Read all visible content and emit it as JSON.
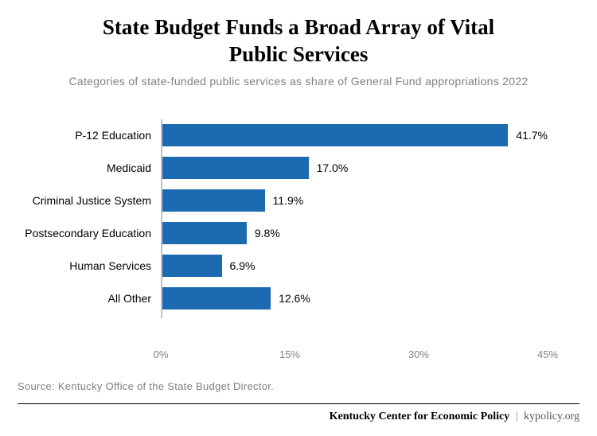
{
  "title_line1": "State Budget Funds a Broad Array of Vital",
  "title_line2": "Public Services",
  "subtitle": "Categories of state-funded public services as share of General Fund appropriations 2022",
  "chart": {
    "type": "bar-horizontal",
    "bar_color": "#1c6bb0",
    "axis_color": "#c0c0c0",
    "label_color": "#000000",
    "tick_color": "#808080",
    "label_fontsize": 14,
    "value_fontsize": 14,
    "tick_fontsize": 13,
    "xmax": 45,
    "xticks": [
      {
        "pos": 0,
        "label": "0%"
      },
      {
        "pos": 15,
        "label": "15%"
      },
      {
        "pos": 30,
        "label": "30%"
      },
      {
        "pos": 45,
        "label": "45%"
      }
    ],
    "rows": [
      {
        "label": "P-12 Education",
        "value": 41.7,
        "value_label": "41.7%"
      },
      {
        "label": "Medicaid",
        "value": 17.0,
        "value_label": "17.0%"
      },
      {
        "label": "Criminal Justice System",
        "value": 11.9,
        "value_label": "11.9%"
      },
      {
        "label": "Postsecondary Education",
        "value": 9.8,
        "value_label": "9.8%"
      },
      {
        "label": "Human Services",
        "value": 6.9,
        "value_label": "6.9%"
      },
      {
        "label": "All Other",
        "value": 12.6,
        "value_label": "12.6%"
      }
    ]
  },
  "source": "Source: Kentucky Office of the State Budget Director.",
  "footer": {
    "org": "Kentucky Center for Economic Policy",
    "sep": "|",
    "url": "kypolicy.org"
  }
}
